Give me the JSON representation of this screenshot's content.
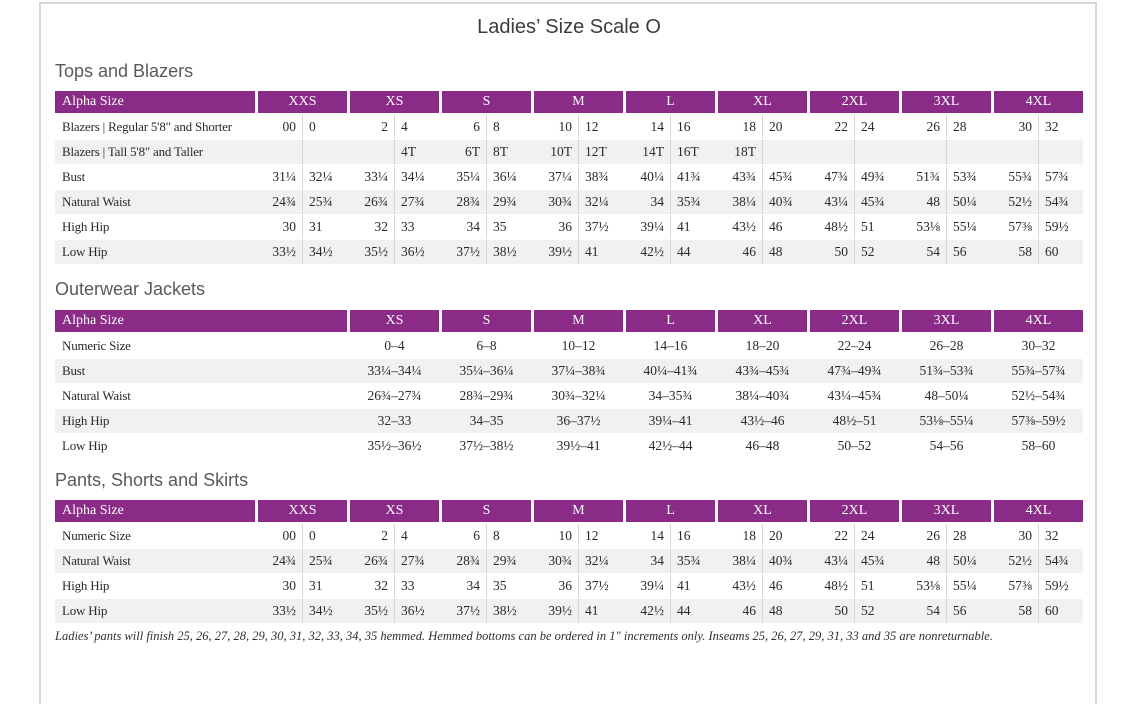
{
  "page": {
    "title": "Ladies’ Size Scale O"
  },
  "colors": {
    "header_bg": "#8A2B87",
    "header_text": "#FFFFFF",
    "row_alt": "#F2F1EF"
  },
  "sections": [
    {
      "heading": "Tops and Blazers",
      "table": {
        "label_header": "Alpha Size",
        "columns": [
          "XXS",
          "XS",
          "S",
          "M",
          "L",
          "XL",
          "2XL",
          "3XL",
          "4XL"
        ],
        "rows": [
          {
            "label": "Blazers | Regular 5'8\" and Shorter",
            "values": [
              [
                "00",
                "0"
              ],
              [
                "2",
                "4"
              ],
              [
                "6",
                "8"
              ],
              [
                "10",
                "12"
              ],
              [
                "14",
                "16"
              ],
              [
                "18",
                "20"
              ],
              [
                "22",
                "24"
              ],
              [
                "26",
                "28"
              ],
              [
                "30",
                "32"
              ]
            ]
          },
          {
            "label": "Blazers | Tall 5'8\" and Taller",
            "values": [
              [
                "",
                ""
              ],
              [
                "",
                "4T"
              ],
              [
                "6T",
                "8T"
              ],
              [
                "10T",
                "12T"
              ],
              [
                "14T",
                "16T"
              ],
              [
                "18T",
                ""
              ],
              [
                "",
                ""
              ],
              [
                "",
                ""
              ],
              [
                "",
                ""
              ]
            ]
          },
          {
            "label": "Bust",
            "values": [
              [
                "31¼",
                "32¼"
              ],
              [
                "33¼",
                "34¼"
              ],
              [
                "35¼",
                "36¼"
              ],
              [
                "37¼",
                "38¾"
              ],
              [
                "40¼",
                "41¾"
              ],
              [
                "43¾",
                "45¾"
              ],
              [
                "47¾",
                "49¾"
              ],
              [
                "51¾",
                "53¾"
              ],
              [
                "55¾",
                "57¾"
              ]
            ]
          },
          {
            "label": "Natural Waist",
            "values": [
              [
                "24¾",
                "25¾"
              ],
              [
                "26¾",
                "27¾"
              ],
              [
                "28¾",
                "29¾"
              ],
              [
                "30¾",
                "32¼"
              ],
              [
                "34",
                "35¾"
              ],
              [
                "38¼",
                "40¾"
              ],
              [
                "43¼",
                "45¾"
              ],
              [
                "48",
                "50¼"
              ],
              [
                "52½",
                "54¾"
              ]
            ]
          },
          {
            "label": "High Hip",
            "values": [
              [
                "30",
                "31"
              ],
              [
                "32",
                "33"
              ],
              [
                "34",
                "35"
              ],
              [
                "36",
                "37½"
              ],
              [
                "39¼",
                "41"
              ],
              [
                "43½",
                "46"
              ],
              [
                "48½",
                "51"
              ],
              [
                "53⅛",
                "55¼"
              ],
              [
                "57⅜",
                "59½"
              ]
            ]
          },
          {
            "label": "Low Hip",
            "values": [
              [
                "33½",
                "34½"
              ],
              [
                "35½",
                "36½"
              ],
              [
                "37½",
                "38½"
              ],
              [
                "39½",
                "41"
              ],
              [
                "42½",
                "44"
              ],
              [
                "46",
                "48"
              ],
              [
                "50",
                "52"
              ],
              [
                "54",
                "56"
              ],
              [
                "58",
                "60"
              ]
            ]
          }
        ]
      }
    },
    {
      "heading": "Outerwear Jackets",
      "table": {
        "label_header": "Alpha Size",
        "columns": [
          "XS",
          "S",
          "M",
          "L",
          "XL",
          "2XL",
          "3XL",
          "4XL"
        ],
        "rows": [
          {
            "label": "Numeric Size",
            "values": [
              "0–4",
              "6–8",
              "10–12",
              "14–16",
              "18–20",
              "22–24",
              "26–28",
              "30–32"
            ]
          },
          {
            "label": "Bust",
            "values": [
              "33¼–34¼",
              "35¼–36¼",
              "37¼–38¾",
              "40¼–41¾",
              "43¾–45¾",
              "47¾–49¾",
              "51¾–53¾",
              "55¾–57¾"
            ]
          },
          {
            "label": "Natural Waist",
            "values": [
              "26¾–27¾",
              "28¾–29¾",
              "30¾–32¼",
              "34–35¾",
              "38¼–40¾",
              "43¼–45¾",
              "48–50¼",
              "52½–54¾"
            ]
          },
          {
            "label": "High Hip",
            "values": [
              "32–33",
              "34–35",
              "36–37½",
              "39¼–41",
              "43½–46",
              "48½–51",
              "53⅛–55¼",
              "57⅜–59½"
            ]
          },
          {
            "label": "Low Hip",
            "values": [
              "35½–36½",
              "37½–38½",
              "39½–41",
              "42½–44",
              "46–48",
              "50–52",
              "54–56",
              "58–60"
            ]
          }
        ]
      }
    },
    {
      "heading": "Pants, Shorts and Skirts",
      "table": {
        "label_header": "Alpha Size",
        "columns": [
          "XXS",
          "XS",
          "S",
          "M",
          "L",
          "XL",
          "2XL",
          "3XL",
          "4XL"
        ],
        "rows": [
          {
            "label": "Numeric Size",
            "values": [
              [
                "00",
                "0"
              ],
              [
                "2",
                "4"
              ],
              [
                "6",
                "8"
              ],
              [
                "10",
                "12"
              ],
              [
                "14",
                "16"
              ],
              [
                "18",
                "20"
              ],
              [
                "22",
                "24"
              ],
              [
                "26",
                "28"
              ],
              [
                "30",
                "32"
              ]
            ]
          },
          {
            "label": "Natural Waist",
            "values": [
              [
                "24¾",
                "25¾"
              ],
              [
                "26¾",
                "27¾"
              ],
              [
                "28¾",
                "29¾"
              ],
              [
                "30¾",
                "32¼"
              ],
              [
                "34",
                "35¾"
              ],
              [
                "38¼",
                "40¾"
              ],
              [
                "43¼",
                "45¾"
              ],
              [
                "48",
                "50¼"
              ],
              [
                "52½",
                "54¾"
              ]
            ]
          },
          {
            "label": "High Hip",
            "values": [
              [
                "30",
                "31"
              ],
              [
                "32",
                "33"
              ],
              [
                "34",
                "35"
              ],
              [
                "36",
                "37½"
              ],
              [
                "39¼",
                "41"
              ],
              [
                "43½",
                "46"
              ],
              [
                "48½",
                "51"
              ],
              [
                "53⅛",
                "55¼"
              ],
              [
                "57⅜",
                "59½"
              ]
            ]
          },
          {
            "label": "Low Hip",
            "values": [
              [
                "33½",
                "34½"
              ],
              [
                "35½",
                "36½"
              ],
              [
                "37½",
                "38½"
              ],
              [
                "39½",
                "41"
              ],
              [
                "42½",
                "44"
              ],
              [
                "46",
                "48"
              ],
              [
                "50",
                "52"
              ],
              [
                "54",
                "56"
              ],
              [
                "58",
                "60"
              ]
            ]
          }
        ]
      }
    }
  ],
  "footnote": "Ladies’ pants will finish 25, 26, 27, 28, 29, 30, 31, 32, 33, 34, 35 hemmed. Hemmed bottoms can be ordered in 1\" increments only. Inseams 25, 26, 27, 29, 31, 33 and 35 are nonreturnable."
}
